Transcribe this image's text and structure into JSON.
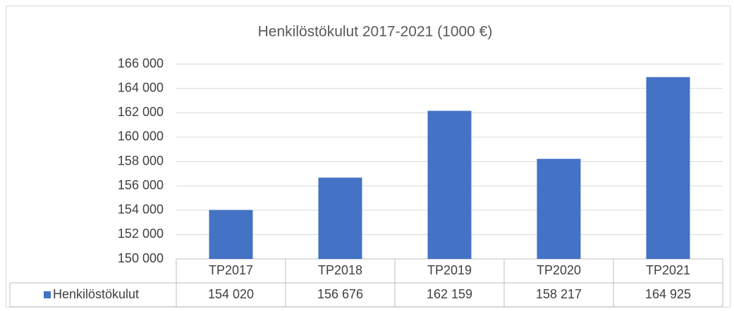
{
  "chart_data": {
    "type": "bar",
    "title": "Henkilöstökulut 2017-2021 (1000 €)",
    "categories": [
      "TP2017",
      "TP2018",
      "TP2019",
      "TP2020",
      "TP2021"
    ],
    "series": [
      {
        "name": "Henkilöstökulut",
        "color": "#4472c4",
        "values": [
          154020,
          156676,
          162159,
          158217,
          164925
        ],
        "value_labels": [
          "154 020",
          "156 676",
          "162 159",
          "158 217",
          "164 925"
        ]
      }
    ],
    "ylim": [
      150000,
      166000
    ],
    "yticks": [
      {
        "value": 150000,
        "label": "150 000"
      },
      {
        "value": 152000,
        "label": "152 000"
      },
      {
        "value": 154000,
        "label": "154 000"
      },
      {
        "value": 156000,
        "label": "156 000"
      },
      {
        "value": 158000,
        "label": "158 000"
      },
      {
        "value": 160000,
        "label": "160 000"
      },
      {
        "value": 162000,
        "label": "162 000"
      },
      {
        "value": 164000,
        "label": "164 000"
      },
      {
        "value": 166000,
        "label": "166 000"
      }
    ],
    "grid": true
  }
}
